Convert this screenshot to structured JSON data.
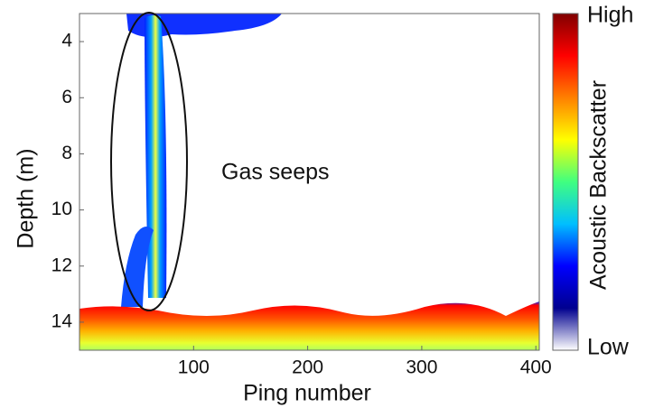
{
  "chart_data": {
    "type": "heatmap",
    "xlabel": "Ping number",
    "ylabel": "Depth (m)",
    "xlim": [
      0,
      403
    ],
    "xticks": [
      100,
      200,
      300,
      400
    ],
    "ylim": [
      3,
      15
    ],
    "yticks": [
      4,
      6,
      8,
      10,
      12,
      14
    ],
    "y_inverted": true,
    "annotation": "Gas seeps",
    "colorbar": {
      "label": "Acoustic Backscatter",
      "high_label": "High",
      "low_label": "Low",
      "colors": [
        "#ffffff",
        "#00008f",
        "#0000ff",
        "#00bfff",
        "#40ff80",
        "#ffff00",
        "#ff8000",
        "#ff0000",
        "#800000"
      ]
    }
  }
}
